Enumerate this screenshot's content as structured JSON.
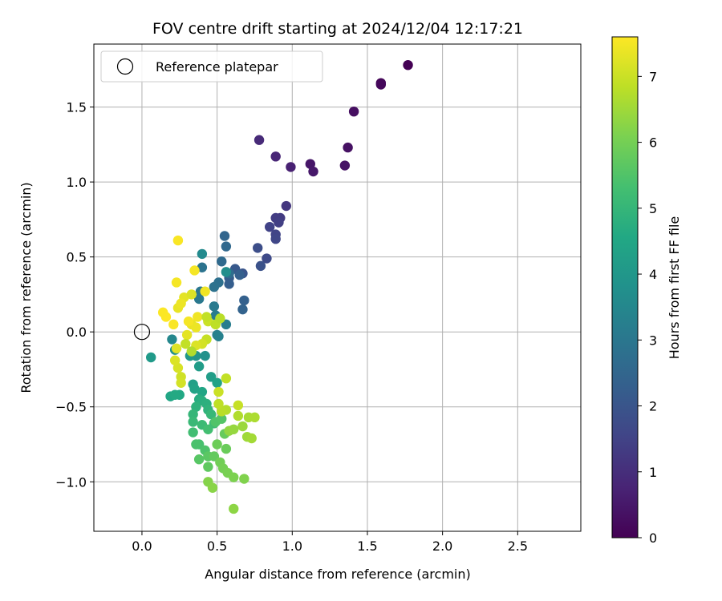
{
  "chart_data": {
    "type": "scatter",
    "title": "FOV centre drift starting at 2024/12/04 12:17:21",
    "xlabel": "Angular distance from reference (arcmin)",
    "ylabel": "Rotation from reference (arcmin)",
    "xlim": [
      -0.32,
      2.92
    ],
    "ylim": [
      -1.33,
      1.92
    ],
    "xticks": [
      0.0,
      0.5,
      1.0,
      1.5,
      2.0,
      2.5
    ],
    "xtick_labels": [
      "0.0",
      "0.5",
      "1.0",
      "1.5",
      "2.0",
      "2.5"
    ],
    "yticks": [
      -1.0,
      -0.5,
      0.0,
      0.5,
      1.0,
      1.5
    ],
    "ytick_labels": [
      "−1.0",
      "−0.5",
      "0.0",
      "0.5",
      "1.0",
      "1.5"
    ],
    "grid": true,
    "legend": {
      "position": "top-left",
      "entries": [
        "Reference platepar"
      ]
    },
    "reference": {
      "name": "Reference platepar",
      "x": 0.0,
      "y": 0.0
    },
    "colorbar": {
      "label": "Hours from first FF file",
      "min": 0,
      "max": 7.6,
      "colormap": "viridis",
      "ticks": [
        0,
        1,
        2,
        3,
        4,
        5,
        6,
        7
      ],
      "tick_labels": [
        "0",
        "1",
        "2",
        "3",
        "4",
        "5",
        "6",
        "7"
      ]
    },
    "points": [
      [
        1.77,
        1.78,
        0.0
      ],
      [
        1.59,
        1.66,
        0.1
      ],
      [
        1.59,
        1.65,
        0.15
      ],
      [
        1.41,
        1.47,
        0.3
      ],
      [
        1.37,
        1.23,
        0.35
      ],
      [
        1.35,
        1.11,
        0.4
      ],
      [
        1.12,
        1.12,
        0.45
      ],
      [
        1.14,
        1.07,
        0.5
      ],
      [
        0.99,
        1.1,
        0.7
      ],
      [
        0.89,
        1.17,
        0.8
      ],
      [
        0.78,
        1.28,
        0.9
      ],
      [
        0.96,
        0.84,
        1.2
      ],
      [
        0.92,
        0.76,
        1.3
      ],
      [
        0.89,
        0.76,
        1.35
      ],
      [
        0.91,
        0.73,
        1.4
      ],
      [
        0.85,
        0.7,
        1.5
      ],
      [
        0.89,
        0.65,
        1.55
      ],
      [
        0.89,
        0.62,
        1.6
      ],
      [
        0.83,
        0.49,
        1.7
      ],
      [
        0.77,
        0.56,
        1.8
      ],
      [
        0.79,
        0.44,
        1.9
      ],
      [
        0.67,
        0.39,
        2.0
      ],
      [
        0.62,
        0.42,
        2.1
      ],
      [
        0.58,
        0.36,
        2.2
      ],
      [
        0.58,
        0.32,
        2.25
      ],
      [
        0.65,
        0.38,
        2.3
      ],
      [
        0.68,
        0.21,
        2.35
      ],
      [
        0.67,
        0.15,
        2.4
      ],
      [
        0.55,
        0.64,
        2.5
      ],
      [
        0.56,
        0.57,
        2.55
      ],
      [
        0.53,
        0.47,
        2.6
      ],
      [
        0.58,
        0.39,
        2.7
      ],
      [
        0.51,
        0.33,
        2.8
      ],
      [
        0.48,
        0.3,
        2.85
      ],
      [
        0.4,
        0.43,
        2.9
      ],
      [
        0.39,
        0.27,
        3.0
      ],
      [
        0.38,
        0.22,
        3.05
      ],
      [
        0.48,
        0.17,
        3.1
      ],
      [
        0.49,
        0.11,
        3.15
      ],
      [
        0.56,
        0.05,
        3.2
      ],
      [
        0.5,
        -0.02,
        3.25
      ],
      [
        0.51,
        -0.03,
        3.3
      ],
      [
        0.2,
        -0.05,
        3.5
      ],
      [
        0.4,
        0.52,
        3.6
      ],
      [
        0.56,
        0.4,
        3.7
      ],
      [
        0.22,
        -0.12,
        3.75
      ],
      [
        0.42,
        -0.16,
        3.8
      ],
      [
        0.36,
        -0.16,
        3.9
      ],
      [
        0.32,
        -0.16,
        4.0
      ],
      [
        0.06,
        -0.17,
        4.1
      ],
      [
        0.38,
        -0.23,
        4.15
      ],
      [
        0.46,
        -0.3,
        4.2
      ],
      [
        0.34,
        -0.35,
        4.3
      ],
      [
        0.5,
        -0.34,
        4.35
      ],
      [
        0.35,
        -0.38,
        4.4
      ],
      [
        0.4,
        -0.4,
        4.45
      ],
      [
        0.19,
        -0.43,
        4.5
      ],
      [
        0.25,
        -0.42,
        4.55
      ],
      [
        0.22,
        -0.42,
        4.6
      ],
      [
        0.38,
        -0.45,
        4.7
      ],
      [
        0.4,
        -0.46,
        4.75
      ],
      [
        0.43,
        -0.48,
        4.8
      ],
      [
        0.36,
        -0.5,
        4.85
      ],
      [
        0.44,
        -0.52,
        4.9
      ],
      [
        0.34,
        -0.55,
        5.0
      ],
      [
        0.46,
        -0.55,
        5.05
      ],
      [
        0.34,
        -0.6,
        5.1
      ],
      [
        0.4,
        -0.62,
        5.15
      ],
      [
        0.48,
        -0.61,
        5.2
      ],
      [
        0.34,
        -0.67,
        5.25
      ],
      [
        0.44,
        -0.65,
        5.3
      ],
      [
        0.38,
        -0.75,
        5.35
      ],
      [
        0.36,
        -0.75,
        5.4
      ],
      [
        0.42,
        -0.79,
        5.45
      ],
      [
        0.49,
        -0.6,
        5.5
      ],
      [
        0.53,
        -0.58,
        5.55
      ],
      [
        0.38,
        -0.85,
        5.6
      ],
      [
        0.44,
        -0.83,
        5.65
      ],
      [
        0.44,
        -0.9,
        5.7
      ],
      [
        0.48,
        -0.83,
        5.75
      ],
      [
        0.55,
        -0.68,
        5.8
      ],
      [
        0.56,
        -0.78,
        5.85
      ],
      [
        0.5,
        -0.75,
        5.9
      ],
      [
        0.52,
        -0.87,
        5.95
      ],
      [
        0.54,
        -0.91,
        6.0
      ],
      [
        0.57,
        -0.94,
        6.05
      ],
      [
        0.61,
        -0.97,
        6.1
      ],
      [
        0.68,
        -0.98,
        6.15
      ],
      [
        0.44,
        -1.0,
        6.2
      ],
      [
        0.47,
        -1.04,
        6.25
      ],
      [
        0.61,
        -1.18,
        6.3
      ],
      [
        0.58,
        -0.66,
        6.35
      ],
      [
        0.61,
        -0.65,
        6.4
      ],
      [
        0.67,
        -0.63,
        6.45
      ],
      [
        0.7,
        -0.7,
        6.5
      ],
      [
        0.73,
        -0.71,
        6.55
      ],
      [
        0.71,
        -0.57,
        6.6
      ],
      [
        0.75,
        -0.57,
        6.65
      ],
      [
        0.64,
        -0.56,
        6.7
      ],
      [
        0.56,
        -0.52,
        6.75
      ],
      [
        0.53,
        -0.53,
        6.8
      ],
      [
        0.51,
        -0.48,
        6.85
      ],
      [
        0.56,
        -0.31,
        6.9
      ],
      [
        0.64,
        -0.49,
        6.95
      ],
      [
        0.51,
        -0.4,
        7.0
      ],
      [
        0.26,
        -0.3,
        7.05
      ],
      [
        0.26,
        -0.34,
        7.1
      ],
      [
        0.24,
        -0.24,
        7.15
      ],
      [
        0.22,
        -0.19,
        7.2
      ],
      [
        0.23,
        -0.11,
        7.25
      ],
      [
        0.3,
        -0.02,
        7.3
      ],
      [
        0.33,
        0.05,
        7.35
      ],
      [
        0.36,
        0.03,
        7.4
      ],
      [
        0.37,
        0.1,
        7.45
      ],
      [
        0.31,
        0.07,
        7.5
      ],
      [
        0.21,
        0.05,
        7.55
      ],
      [
        0.16,
        0.1,
        7.6
      ],
      [
        0.14,
        0.13,
        7.58
      ],
      [
        0.23,
        0.33,
        7.5
      ],
      [
        0.24,
        0.61,
        7.55
      ],
      [
        0.35,
        0.41,
        7.5
      ],
      [
        0.42,
        0.27,
        7.45
      ],
      [
        0.28,
        0.23,
        7.3
      ],
      [
        0.33,
        0.25,
        7.2
      ],
      [
        0.24,
        0.16,
        7.35
      ],
      [
        0.26,
        0.19,
        7.4
      ],
      [
        0.44,
        0.07,
        7.0
      ],
      [
        0.43,
        0.1,
        6.9
      ],
      [
        0.49,
        0.05,
        6.85
      ],
      [
        0.52,
        0.09,
        6.8
      ],
      [
        0.43,
        -0.05,
        6.95
      ],
      [
        0.4,
        -0.08,
        7.1
      ],
      [
        0.36,
        -0.09,
        7.2
      ],
      [
        0.29,
        -0.08,
        6.9
      ],
      [
        0.33,
        -0.13,
        6.7
      ]
    ]
  }
}
